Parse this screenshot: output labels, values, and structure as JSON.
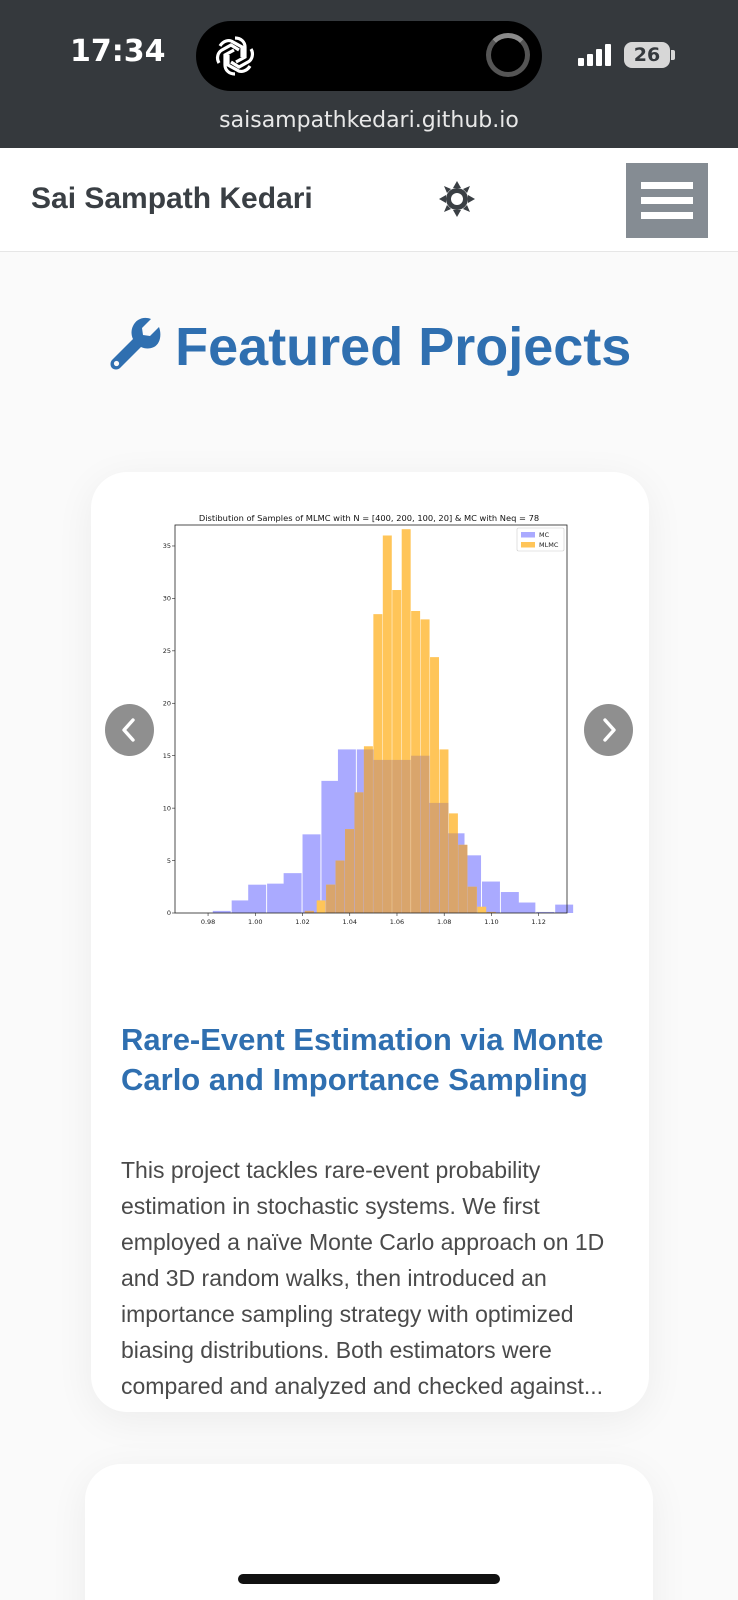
{
  "status": {
    "time": "17:34",
    "battery": "26",
    "url": "saisampathkedari.github.io"
  },
  "navbar": {
    "site_name": "Sai Sampath Kedari"
  },
  "section": {
    "title": "Featured Projects"
  },
  "project": {
    "title": "Rare-Event Estimation via Monte Carlo and Importance Sampling",
    "description": "This project tackles rare-event probability estimation in stochastic systems. We first employed a naïve Monte Carlo approach on 1D and 3D random walks, then introduced an importance sampling strategy with optimized biasing distributions. Both estimators were compared and analyzed and checked against..."
  },
  "colors": {
    "accent": "#2f6fb0",
    "mc": "#aaaaff",
    "mlmc": "#ffc559",
    "overlap": "#d9a56c"
  },
  "chart_data": {
    "type": "bar",
    "title": "Distibution of Samples of MLMC with N = [400, 200, 100, 20] & MC with Neq = 78",
    "xlim": [
      0.966,
      1.132
    ],
    "ylim": [
      0,
      37
    ],
    "xticks": [
      0.98,
      1.0,
      1.02,
      1.04,
      1.06,
      1.08,
      1.1,
      1.12
    ],
    "yticks": [
      0,
      5,
      10,
      15,
      20,
      25,
      30,
      35
    ],
    "xtick_labels": [
      "0.98",
      "1.00",
      "1.02",
      "1.04",
      "1.06",
      "1.08",
      "1.10",
      "1.12"
    ],
    "ytick_labels": [
      "0",
      "5",
      "10",
      "15",
      "20",
      "25",
      "30",
      "35"
    ],
    "legend_position": "top-right",
    "series": [
      {
        "name": "MC",
        "color": "#aaaaff",
        "bins": [
          [
            0.974,
            0.0
          ],
          [
            0.982,
            0.2
          ],
          [
            0.99,
            1.2
          ],
          [
            0.997,
            2.7
          ],
          [
            1.005,
            2.8
          ],
          [
            1.012,
            3.8
          ],
          [
            1.02,
            7.5
          ],
          [
            1.028,
            12.6
          ],
          [
            1.035,
            15.6
          ],
          [
            1.043,
            15.6
          ],
          [
            1.05,
            14.6
          ],
          [
            1.058,
            14.6
          ],
          [
            1.066,
            15.0
          ],
          [
            1.073,
            10.5
          ],
          [
            1.081,
            7.6
          ],
          [
            1.088,
            5.5
          ],
          [
            1.096,
            3.0
          ],
          [
            1.104,
            2.0
          ],
          [
            1.111,
            1.0
          ],
          [
            1.119,
            0.1
          ],
          [
            1.127,
            0.8
          ]
        ],
        "bin_width": 0.0076
      },
      {
        "name": "MLMC",
        "color": "#ffc559",
        "bins": [
          [
            1.021,
            0.2
          ],
          [
            1.026,
            1.2
          ],
          [
            1.03,
            2.7
          ],
          [
            1.034,
            5.0
          ],
          [
            1.038,
            8.0
          ],
          [
            1.042,
            11.5
          ],
          [
            1.046,
            15.9
          ],
          [
            1.05,
            28.5
          ],
          [
            1.054,
            36.0
          ],
          [
            1.058,
            30.8
          ],
          [
            1.062,
            36.6
          ],
          [
            1.066,
            28.8
          ],
          [
            1.07,
            28.0
          ],
          [
            1.074,
            24.4
          ],
          [
            1.078,
            15.6
          ],
          [
            1.082,
            9.5
          ],
          [
            1.086,
            6.5
          ],
          [
            1.09,
            2.5
          ],
          [
            1.094,
            0.6
          ],
          [
            1.098,
            0.1
          ]
        ],
        "bin_width": 0.0038
      }
    ]
  }
}
